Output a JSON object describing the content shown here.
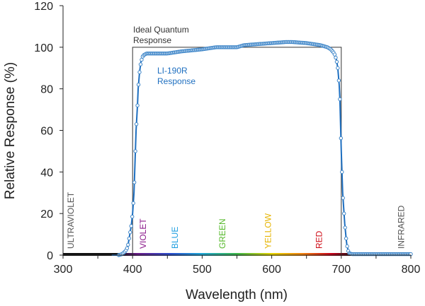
{
  "chart_data": {
    "type": "line",
    "xlabel": "Wavelength (nm)",
    "ylabel": "Relative Response (%)",
    "xlim": [
      300,
      800
    ],
    "ylim": [
      0,
      120
    ],
    "xticks": [
      300,
      400,
      500,
      600,
      700,
      800
    ],
    "yticks": [
      0,
      20,
      40,
      60,
      80,
      100,
      120
    ],
    "grid": false,
    "series": [
      {
        "name": "LI-190R Response",
        "color": "#1e6fc0",
        "x": [
          370,
          380,
          385,
          390,
          393,
          395,
          398,
          400,
          402,
          403,
          405,
          407,
          408,
          410,
          412,
          415,
          420,
          430,
          450,
          470,
          500,
          520,
          550,
          560,
          580,
          600,
          620,
          630,
          650,
          660,
          670,
          680,
          685,
          690,
          693,
          695,
          697,
          698,
          700,
          701,
          702,
          704,
          705,
          707,
          708,
          710,
          711,
          715,
          750,
          800
        ],
        "y": [
          0,
          0,
          0.5,
          2,
          4,
          8,
          14,
          20,
          30,
          40,
          60,
          72,
          80,
          88,
          93,
          96,
          97,
          97,
          97,
          98,
          99,
          100,
          100,
          101,
          101.5,
          102,
          102.5,
          102.5,
          102,
          101.5,
          101,
          100,
          99,
          97,
          94,
          90,
          82,
          75,
          50,
          40,
          30,
          20,
          15,
          8,
          5,
          2,
          1,
          0.5,
          0.5,
          0.5
        ]
      },
      {
        "name": "Ideal Quantum Response",
        "color": "#333333",
        "x": [
          400,
          400,
          700,
          700
        ],
        "y": [
          0,
          100,
          100,
          0
        ]
      }
    ],
    "annotations": {
      "ideal": [
        "Ideal Quantum",
        "Response"
      ],
      "sensor": [
        "LI-190R",
        "Response"
      ]
    },
    "bands": [
      {
        "label": "ULTRAVIOLET",
        "x": 310,
        "color": "#555555"
      },
      {
        "label": "VIOLET",
        "x": 414,
        "color": "#8b1a8b"
      },
      {
        "label": "BLUE",
        "x": 460,
        "color": "#1f9fe0"
      },
      {
        "label": "GREEN",
        "x": 528,
        "color": "#55b82a"
      },
      {
        "label": "YELLOW",
        "x": 594,
        "color": "#e6b400"
      },
      {
        "label": "RED",
        "x": 667,
        "color": "#d0111b"
      },
      {
        "label": "INFRARED",
        "x": 785,
        "color": "#555555"
      }
    ]
  }
}
